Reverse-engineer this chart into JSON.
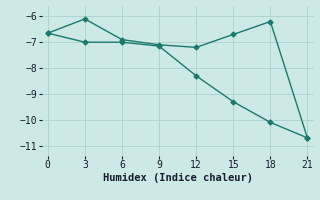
{
  "line1_x": [
    0,
    3,
    6,
    9,
    12,
    15,
    18,
    21
  ],
  "line1_y": [
    -6.65,
    -6.1,
    -6.9,
    -7.1,
    -7.2,
    -6.7,
    -6.2,
    -10.7
  ],
  "line2_x": [
    0,
    3,
    6,
    9,
    12,
    15,
    18,
    21
  ],
  "line2_y": [
    -6.65,
    -7.0,
    -7.0,
    -7.15,
    -8.3,
    -9.3,
    -10.1,
    -10.7
  ],
  "line_color": "#1a7a6e",
  "bg_color": "#cce9e5",
  "grid_color": "#b0d5d0",
  "xlabel": "Humidex (Indice chaleur)",
  "xlim": [
    -0.5,
    21.5
  ],
  "ylim": [
    -11.4,
    -5.6
  ],
  "xticks": [
    0,
    3,
    6,
    9,
    12,
    15,
    18,
    21
  ],
  "yticks": [
    -6,
    -7,
    -8,
    -9,
    -10,
    -11
  ],
  "marker": "D",
  "markersize": 2.5,
  "linewidth": 1.0,
  "xlabel_fontsize": 7.5,
  "tick_fontsize": 7
}
